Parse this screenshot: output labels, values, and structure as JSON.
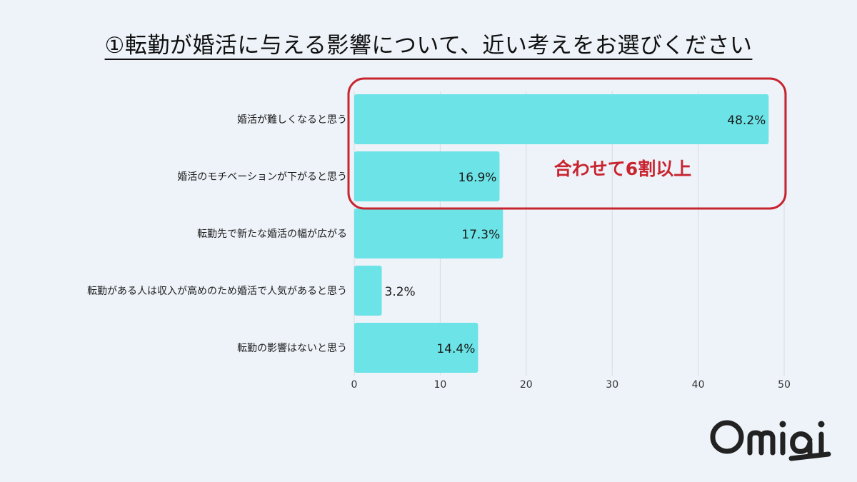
{
  "title": "①転勤が婚活に与える影響について、近い考えをお選びください",
  "callout": "合わせて6割以上",
  "logo_text": "Omiai",
  "colors": {
    "bar": "#6ce3e6",
    "highlight": "#c8242f",
    "text": "#1a1a1a",
    "grid": "#d6dbe2"
  },
  "chart_data": {
    "type": "bar",
    "orientation": "horizontal",
    "categories": [
      "婚活が難しくなると思う",
      "婚活のモチベーションが下がると思う",
      "転勤先で新たな婚活の幅が広がる",
      "転勤がある人は収入が高めのため婚活で人気があると思う",
      "転勤の影響はないと思う"
    ],
    "values": [
      48.2,
      16.9,
      17.3,
      3.2,
      14.4
    ],
    "value_labels": [
      "48.2%",
      "16.9%",
      "17.3%",
      "3.2%",
      "14.4%"
    ],
    "x_ticks": [
      0,
      10,
      20,
      30,
      40,
      50
    ],
    "xlim": [
      0,
      50
    ],
    "grid": true,
    "highlighted_categories": [
      0,
      1
    ]
  }
}
